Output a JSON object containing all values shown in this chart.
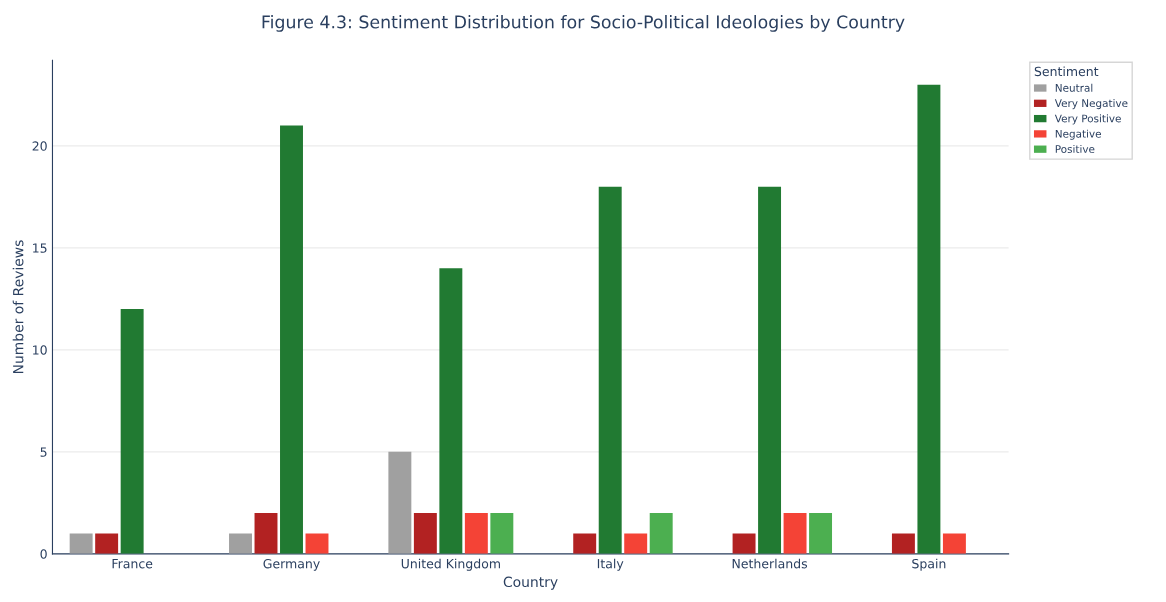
{
  "chart_data": {
    "type": "bar",
    "title": "Figure 4.3: Sentiment Distribution for Socio-Political Ideologies by Country",
    "xlabel": "Country",
    "ylabel": "Number of Reviews",
    "legend_title": "Sentiment",
    "categories": [
      "France",
      "Germany",
      "United Kingdom",
      "Italy",
      "Netherlands",
      "Spain"
    ],
    "series": [
      {
        "name": "Neutral",
        "color": "#a0a0a0",
        "values": [
          1,
          1,
          5,
          null,
          null,
          null
        ]
      },
      {
        "name": "Very Negative",
        "color": "#b22222",
        "values": [
          1,
          2,
          2,
          1,
          1,
          1
        ]
      },
      {
        "name": "Very Positive",
        "color": "#217a32",
        "values": [
          12,
          21,
          14,
          18,
          18,
          23
        ]
      },
      {
        "name": "Negative",
        "color": "#f44336",
        "values": [
          null,
          1,
          2,
          1,
          2,
          1
        ]
      },
      {
        "name": "Positive",
        "color": "#4caf50",
        "values": [
          null,
          null,
          2,
          2,
          2,
          null
        ]
      }
    ],
    "ylim": [
      0,
      24.2
    ],
    "yticks": [
      0,
      5,
      10,
      15,
      20
    ],
    "grid": "y",
    "legend": "top right"
  }
}
